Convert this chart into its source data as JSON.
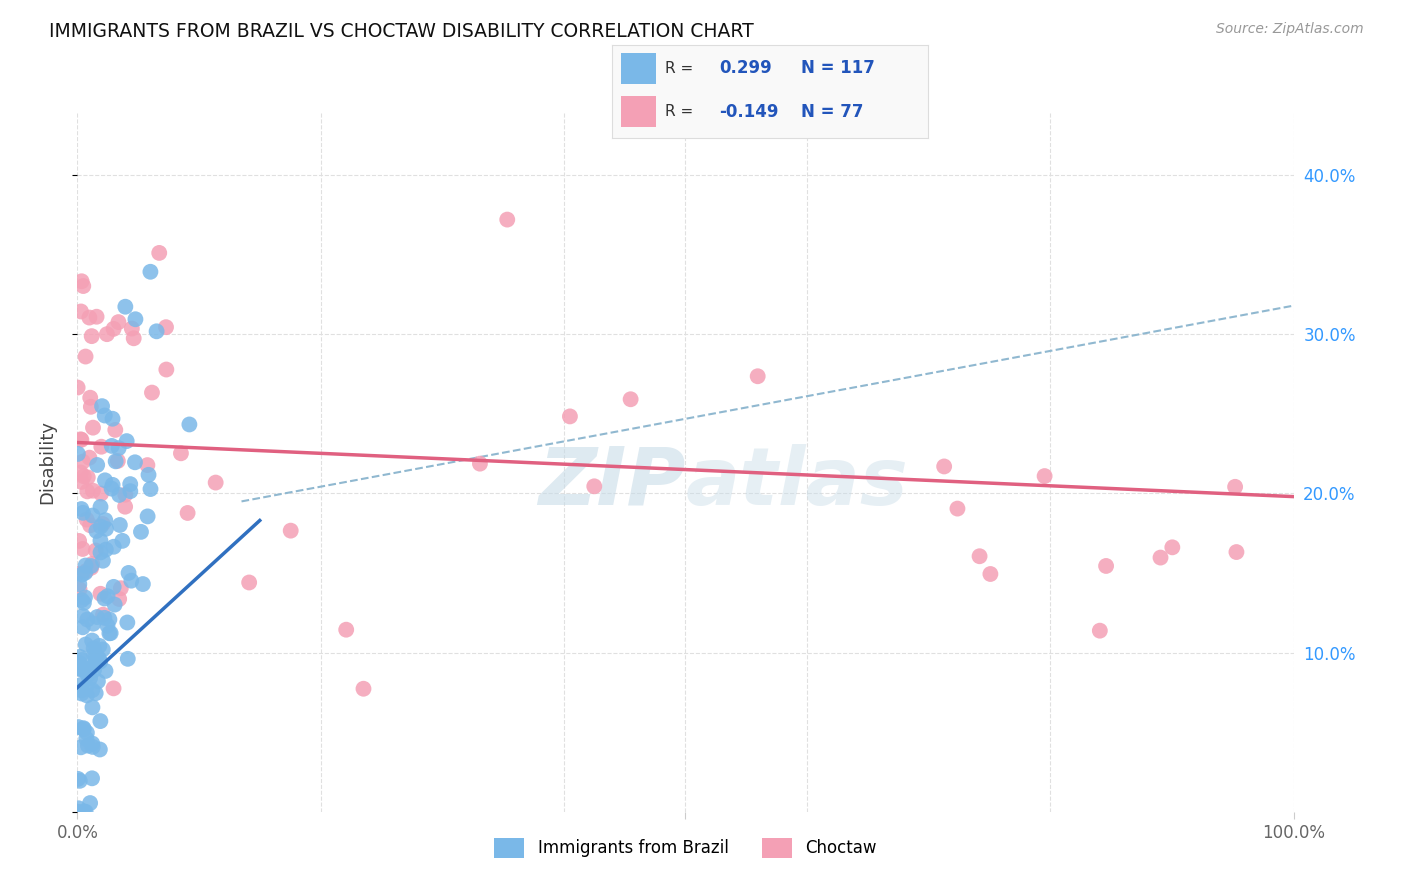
{
  "title": "IMMIGRANTS FROM BRAZIL VS CHOCTAW DISABILITY CORRELATION CHART",
  "source": "Source: ZipAtlas.com",
  "ylabel": "Disability",
  "xlim": [
    0.0,
    1.0
  ],
  "ylim": [
    0.0,
    0.44
  ],
  "brazil_color": "#7ab8e8",
  "choctaw_color": "#f4a0b5",
  "brazil_R": 0.299,
  "brazil_N": 117,
  "choctaw_R": -0.149,
  "choctaw_N": 77,
  "brazil_line_color": "#3070c0",
  "choctaw_line_color": "#e06080",
  "dashed_line_color": "#90b8d0",
  "legend_R_color": "#2255bb",
  "legend_N_color": "#2255bb",
  "watermark_color": "#c8dce8",
  "background_color": "#ffffff",
  "grid_color": "#e0e0e0",
  "right_tick_color": "#3399ff",
  "brazil_seed": 12345,
  "choctaw_seed": 67890,
  "brazil_line_x0": 0.0,
  "brazil_line_y0": 0.078,
  "brazil_line_x1": 0.15,
  "brazil_line_y1": 0.183,
  "choctaw_line_x0": 0.0,
  "choctaw_line_y0": 0.232,
  "choctaw_line_x1": 1.0,
  "choctaw_line_y1": 0.198,
  "dashed_line_x0": 0.135,
  "dashed_line_y0": 0.195,
  "dashed_line_x1": 1.0,
  "dashed_line_y1": 0.318
}
